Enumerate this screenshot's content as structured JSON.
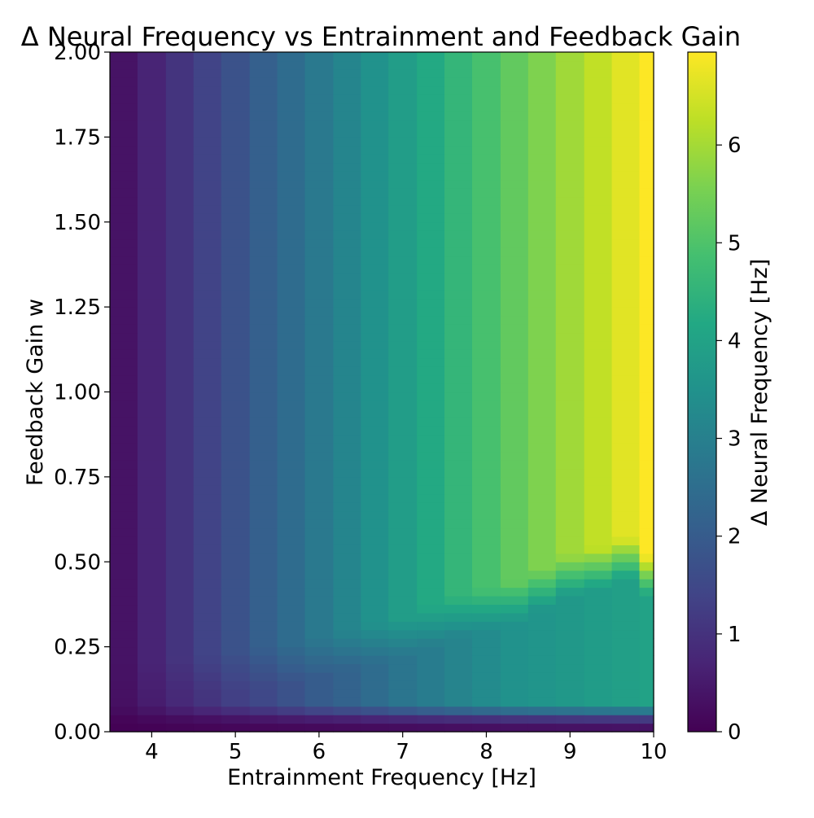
{
  "chart_data": {
    "type": "heatmap",
    "title": "Δ Neural Frequency vs Entrainment and Feedback Gain",
    "xlabel": "Entrainment Frequency [Hz]",
    "ylabel": "Feedback Gain w",
    "colorbar_label": "Δ Neural Frequency [Hz]",
    "colormap": "viridis",
    "xlim": [
      3.5,
      10
    ],
    "ylim": [
      0,
      2
    ],
    "clim": [
      0,
      6.95
    ],
    "x_ticks": [
      "4",
      "5",
      "6",
      "7",
      "8",
      "9",
      "10"
    ],
    "x_tick_values": [
      4,
      5,
      6,
      7,
      8,
      9,
      10
    ],
    "y_ticks": [
      "0.00",
      "0.25",
      "0.50",
      "0.75",
      "1.00",
      "1.25",
      "1.50",
      "1.75",
      "2.00"
    ],
    "y_tick_values": [
      0,
      0.25,
      0.5,
      0.75,
      1.0,
      1.25,
      1.5,
      1.75,
      2.0
    ],
    "colorbar_ticks": [
      "0",
      "1",
      "2",
      "3",
      "4",
      "5",
      "6"
    ],
    "colorbar_tick_values": [
      0,
      1,
      2,
      3,
      4,
      5,
      6
    ],
    "entrainment_frequency_hz": [
      3.5,
      3.83,
      4.17,
      4.5,
      4.83,
      5.17,
      5.5,
      5.83,
      6.17,
      6.5,
      6.83,
      7.17,
      7.5,
      7.83,
      8.17,
      8.5,
      8.83,
      9.17,
      9.5,
      9.83
    ],
    "saturated_delta_hz": [
      0.35,
      0.7,
      1.05,
      1.4,
      1.75,
      2.1,
      2.45,
      2.8,
      3.15,
      3.5,
      3.85,
      4.2,
      4.55,
      4.9,
      5.25,
      5.6,
      5.95,
      6.3,
      6.65,
      6.95
    ],
    "low_gain_band_delta_hz": [
      0.3,
      0.55,
      0.8,
      1.05,
      1.3,
      1.5,
      1.75,
      2.0,
      2.2,
      2.45,
      2.7,
      2.9,
      3.1,
      3.3,
      3.5,
      3.6,
      3.7,
      3.8,
      3.9,
      4.0
    ],
    "transition_gain_w": [
      0.08,
      0.09,
      0.1,
      0.11,
      0.12,
      0.13,
      0.14,
      0.16,
      0.18,
      0.2,
      0.22,
      0.25,
      0.28,
      0.3,
      0.32,
      0.36,
      0.4,
      0.42,
      0.45,
      0.4
    ],
    "zero_gain_delta_hz": 0
  }
}
